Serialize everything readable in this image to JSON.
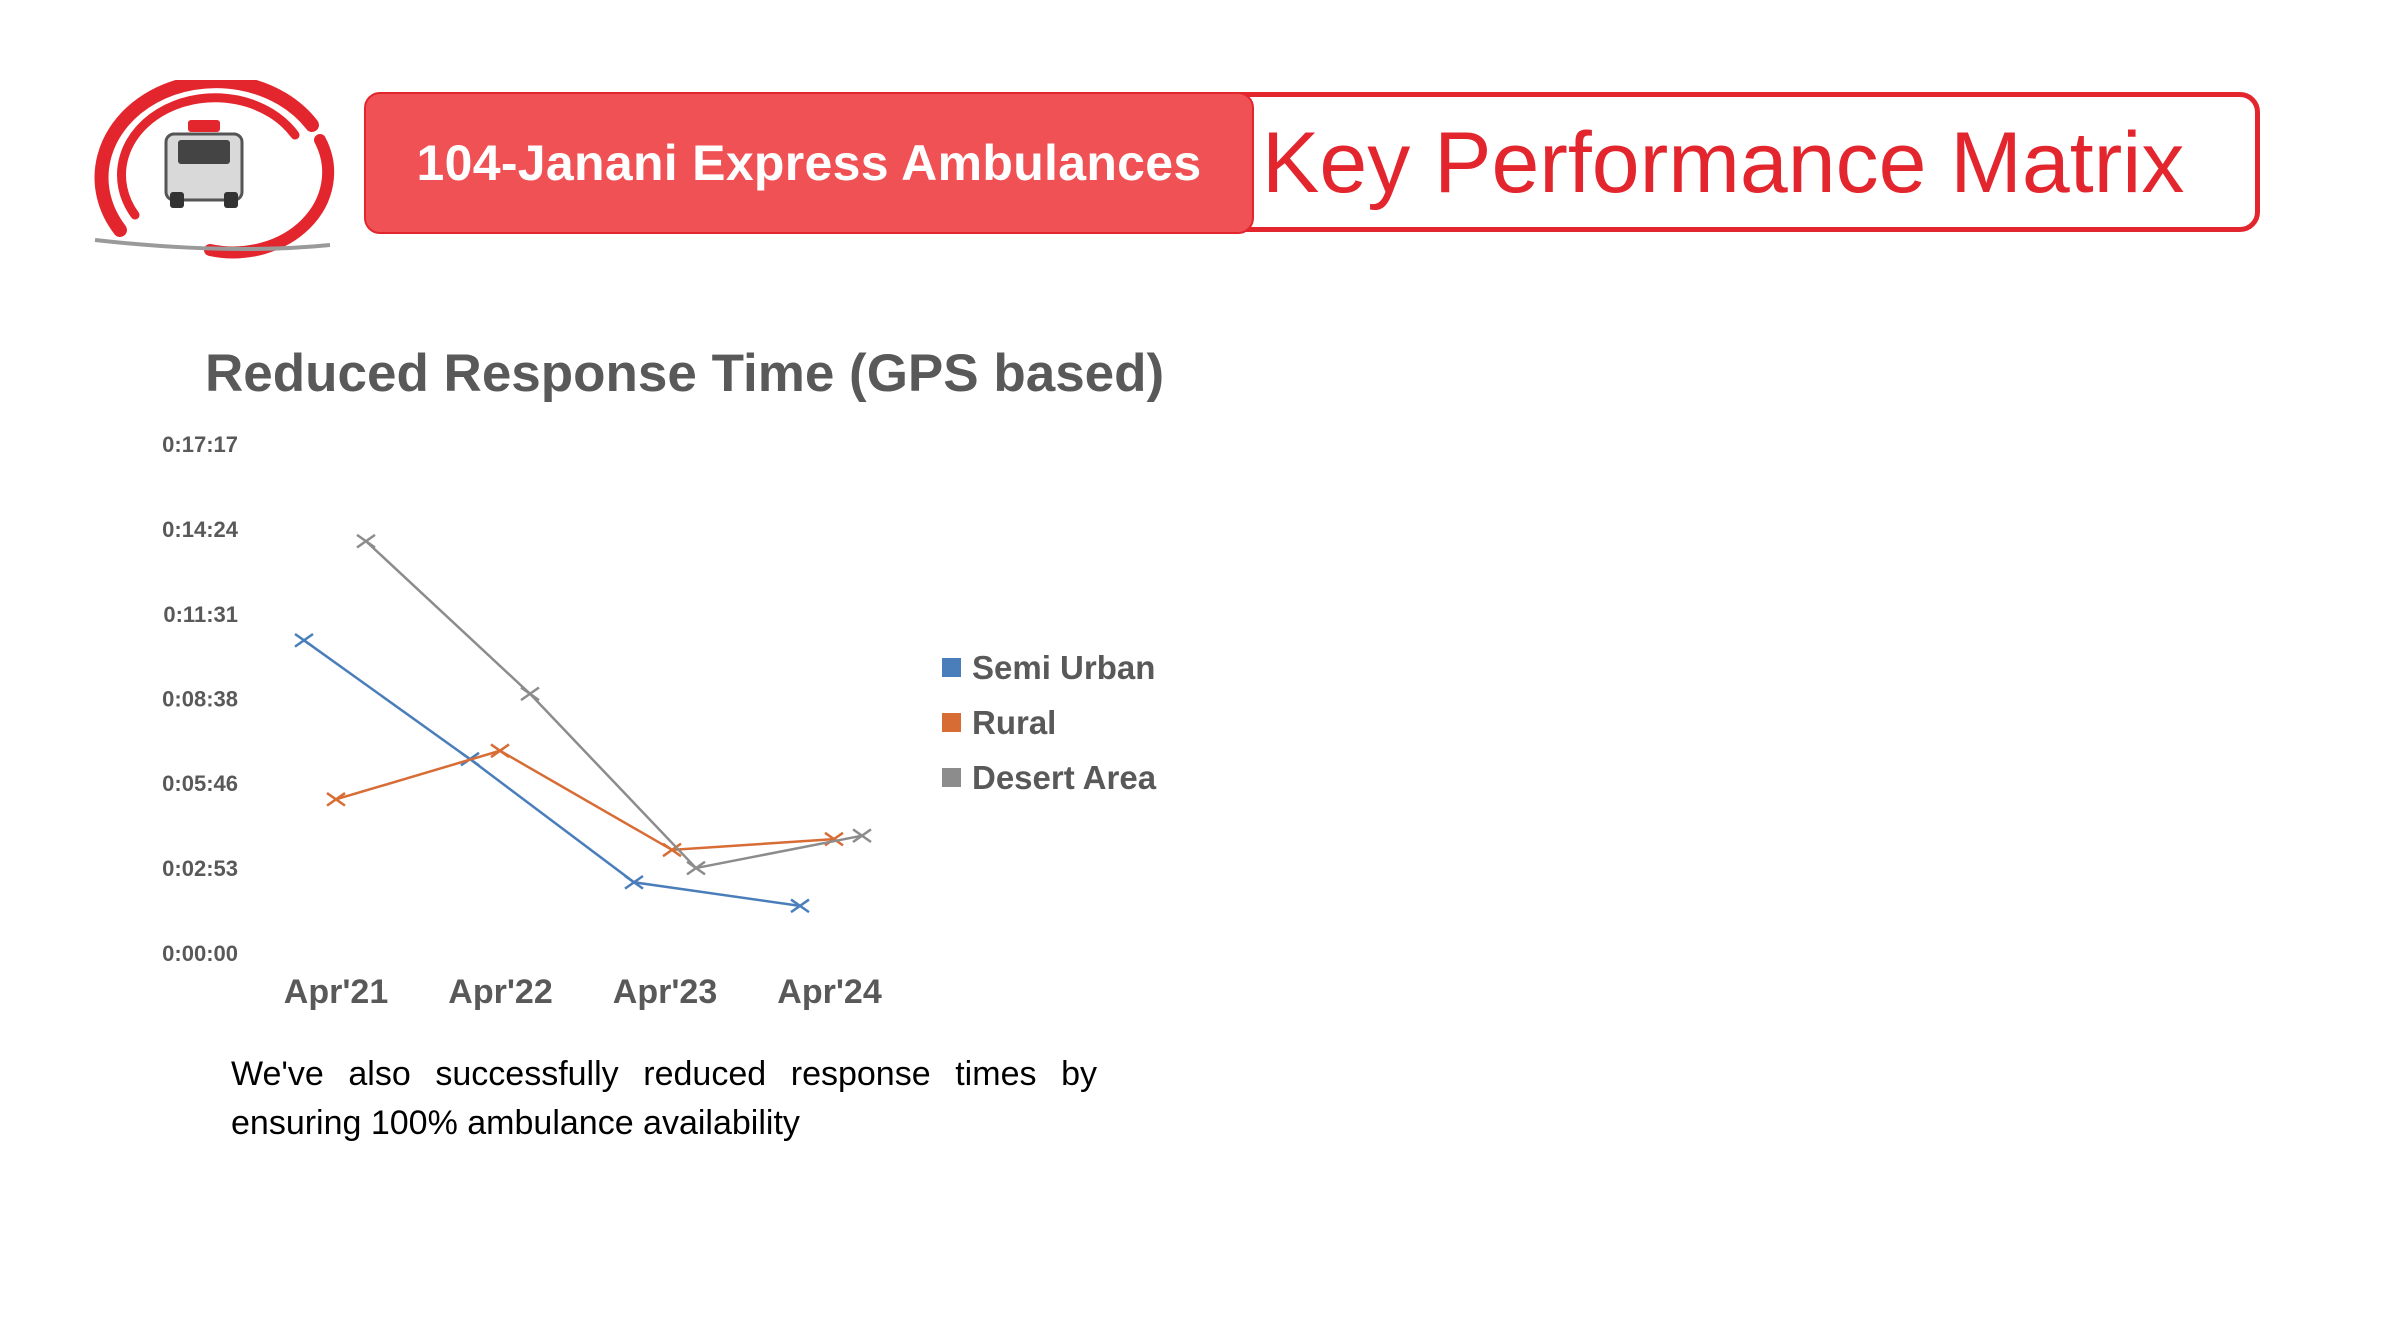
{
  "header": {
    "brand_label": "104-Janani Express Ambulances",
    "title": "Key Performance Matrix"
  },
  "logo": {
    "icon": "ambulance-swirl-logo",
    "accent": "#e3262e"
  },
  "colors": {
    "accent_red": "#e3262e",
    "pill_fill": "#ef5155",
    "semi_urban": "#4a7ebb",
    "rural": "#d86c35",
    "desert": "#8c8c8c"
  },
  "chart_data": {
    "type": "line",
    "title": "Reduced Response Time (GPS based)",
    "categories": [
      "Apr'21",
      "Apr'22",
      "Apr'23",
      "Apr'24"
    ],
    "y_ticks": [
      "0:00:00",
      "0:02:53",
      "0:05:46",
      "0:08:38",
      "0:11:31",
      "0:14:24",
      "0:17:17"
    ],
    "y_tick_seconds": [
      0,
      173,
      346,
      518,
      691,
      864,
      1037
    ],
    "ylim_seconds": [
      0,
      1037
    ],
    "y_unit": "h:mm:ss",
    "grid": false,
    "legend_position": "right",
    "marker": "x",
    "series": [
      {
        "name": "Semi Urban",
        "color": "#4a7ebb",
        "points": [
          {
            "x": "Apr'21",
            "y_seconds": 635
          },
          {
            "x": "Apr'22",
            "y_seconds": 393
          },
          {
            "x": "Apr'23",
            "y_seconds": 142
          },
          {
            "x": "Apr'24",
            "y_seconds": 94
          }
        ]
      },
      {
        "name": "Rural",
        "color": "#d86c35",
        "points": [
          {
            "x": "Apr'21",
            "y_seconds": 311
          },
          {
            "x": "Apr'22",
            "y_seconds": 410
          },
          {
            "x": "Apr'23",
            "y_seconds": 208
          },
          {
            "x": "Apr'24",
            "y_seconds": 230
          }
        ]
      },
      {
        "name": "Desert Area",
        "color": "#8c8c8c",
        "points": [
          {
            "x": "Apr'21",
            "y_seconds": 837
          },
          {
            "x": "Apr'22",
            "y_seconds": 526
          },
          {
            "x": "Apr'23",
            "y_seconds": 171
          },
          {
            "x": "Apr'24",
            "y_seconds": 237
          }
        ]
      }
    ]
  },
  "caption": "We've also successfully reduced response times by ensuring 100% ambulance availability"
}
